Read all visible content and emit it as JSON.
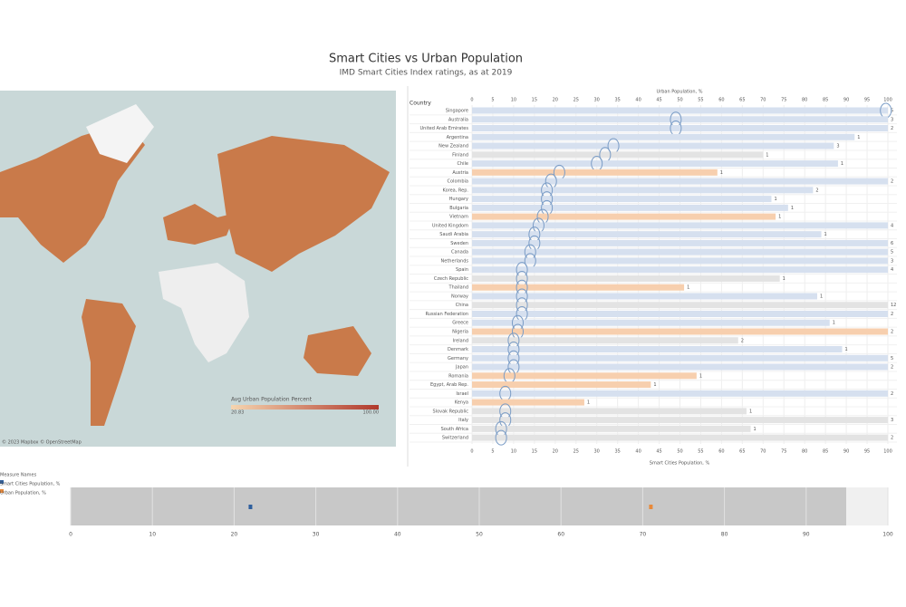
{
  "header": {
    "title": "Smart Cities vs Urban Population",
    "subtitle": "IMD Smart Cities Index ratings, as at 2019"
  },
  "chart_data": [
    {
      "type": "map",
      "legend_title": "Avg Urban Population Percent",
      "legend_range": [
        20.83,
        {
          "value": 100,
          "label": "100.00"
        }
      ],
      "low_color": "#f5d5b0",
      "high_color": "#b0392c",
      "attribution": "© 2023 Mapbox © OpenStreetMap"
    },
    {
      "type": "bar_dot",
      "column_header": "Country",
      "categories": [
        "Singapore",
        "Australia",
        "United Arab Emirates",
        "Argentina",
        "New Zealand",
        "Finland",
        "Chile",
        "Austria",
        "Colombia",
        "Korea, Rep.",
        "Hungary",
        "Bulgaria",
        "Vietnam",
        "United Kingdom",
        "Saudi Arabia",
        "Sweden",
        "Canada",
        "Netherlands",
        "Spain",
        "Czech Republic",
        "Thailand",
        "Norway",
        "China",
        "Russian Federation",
        "Greece",
        "Nigeria",
        "Ireland",
        "Denmark",
        "Germany",
        "Japan",
        "Romania",
        "Egypt, Arab Rep.",
        "Israel",
        "Kenya",
        "Slovak Republic",
        "Italy",
        "South Africa",
        "Switzerland"
      ],
      "series": [
        {
          "name": "Urban Population, %",
          "values": [
            100,
            100,
            100,
            92,
            87,
            70,
            88,
            59,
            100,
            82,
            72,
            76,
            73,
            100,
            84,
            100,
            100,
            100,
            100,
            74,
            51,
            83,
            100,
            100,
            86,
            100,
            64,
            89,
            100,
            100,
            54,
            43,
            100,
            27,
            66,
            100,
            67,
            100
          ]
        },
        {
          "name": "Smart Cities Population, %",
          "color": "#7a9cc6",
          "values": [
            99.5,
            49,
            49,
            null,
            34,
            32,
            30,
            21,
            19,
            18,
            18,
            18,
            17,
            16,
            15,
            15,
            14,
            14,
            12,
            12,
            12,
            12,
            12,
            12,
            11,
            11,
            10,
            10,
            10,
            10,
            9,
            null,
            8,
            null,
            8,
            8,
            7,
            7
          ]
        }
      ],
      "city_counts": [
        5,
        3,
        2,
        1,
        3,
        1,
        1,
        1,
        2,
        2,
        1,
        1,
        1,
        4,
        1,
        6,
        5,
        3,
        4,
        1,
        1,
        1,
        12,
        2,
        1,
        2,
        2,
        1,
        5,
        2,
        1,
        1,
        2,
        1,
        1,
        3,
        1,
        2
      ],
      "bar_colors": [
        "#d6e0ef",
        "#d6e0ef",
        "#d6e0ef",
        "#d6e0ef",
        "#d6e0ef",
        "#e3e3e3",
        "#d6e0ef",
        "#f7cfae",
        "#d6e0ef",
        "#d6e0ef",
        "#d6e0ef",
        "#d6e0ef",
        "#f7cfae",
        "#d6e0ef",
        "#d6e0ef",
        "#d6e0ef",
        "#d6e0ef",
        "#d6e0ef",
        "#d6e0ef",
        "#e3e3e3",
        "#f7cfae",
        "#d6e0ef",
        "#e3e3e3",
        "#d6e0ef",
        "#d6e0ef",
        "#f7cfae",
        "#e3e3e3",
        "#d6e0ef",
        "#d6e0ef",
        "#d6e0ef",
        "#f7cfae",
        "#f7cfae",
        "#d6e0ef",
        "#f7cfae",
        "#e3e3e3",
        "#e3e3e3",
        "#e3e3e3",
        "#e3e3e3"
      ],
      "xlim": [
        0,
        100
      ],
      "xticks": [
        0,
        5,
        10,
        15,
        20,
        25,
        30,
        35,
        40,
        45,
        50,
        55,
        60,
        65,
        70,
        75,
        80,
        85,
        90,
        95,
        100
      ]
    },
    {
      "type": "strip",
      "legend_title": "Measure Names",
      "series": [
        {
          "name": "Smart Cities Population, %",
          "color": "#2f5f9e",
          "values": [
            22
          ]
        },
        {
          "name": "Urban Population, %",
          "color": "#e8893a",
          "values": [
            71
          ]
        }
      ],
      "xlim": [
        0,
        100
      ],
      "xticks": [
        0,
        10,
        20,
        30,
        40,
        50,
        60,
        70,
        80,
        90,
        100
      ]
    }
  ]
}
